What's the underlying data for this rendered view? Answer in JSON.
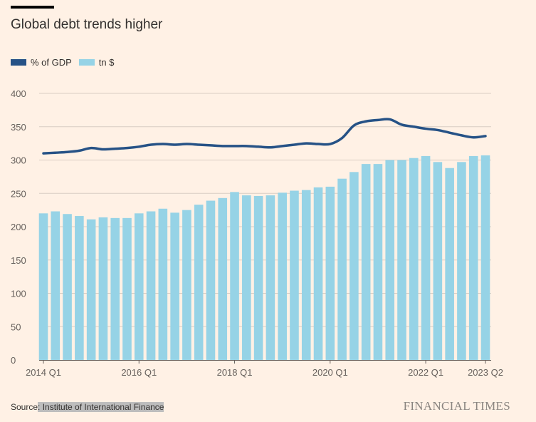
{
  "chart_data": {
    "type": "bar",
    "title": "Global debt trends higher",
    "xlabel": "",
    "ylabel": "",
    "ylim": [
      0,
      400
    ],
    "yticks": [
      0,
      50,
      100,
      150,
      200,
      250,
      300,
      350,
      400
    ],
    "grid": true,
    "legend_placement": "top-left",
    "categories": [
      "2014 Q1",
      "2014 Q2",
      "2014 Q3",
      "2014 Q4",
      "2015 Q1",
      "2015 Q2",
      "2015 Q3",
      "2015 Q4",
      "2016 Q1",
      "2016 Q2",
      "2016 Q3",
      "2016 Q4",
      "2017 Q1",
      "2017 Q2",
      "2017 Q3",
      "2017 Q4",
      "2018 Q1",
      "2018 Q2",
      "2018 Q3",
      "2018 Q4",
      "2019 Q1",
      "2019 Q2",
      "2019 Q3",
      "2019 Q4",
      "2020 Q1",
      "2020 Q2",
      "2020 Q3",
      "2020 Q4",
      "2021 Q1",
      "2021 Q2",
      "2021 Q3",
      "2021 Q4",
      "2022 Q1",
      "2022 Q2",
      "2022 Q3",
      "2022 Q4",
      "2023 Q1",
      "2023 Q2"
    ],
    "xtick_labels": [
      {
        "index": 0,
        "label": "2014 Q1"
      },
      {
        "index": 8,
        "label": "2016 Q1"
      },
      {
        "index": 16,
        "label": "2018 Q1"
      },
      {
        "index": 24,
        "label": "2020 Q1"
      },
      {
        "index": 32,
        "label": "2022 Q1"
      },
      {
        "index": 37,
        "label": "2023 Q2"
      }
    ],
    "series": [
      {
        "name": "% of GDP",
        "type": "line",
        "color": "#265286",
        "values": [
          310,
          311,
          312,
          314,
          318,
          316,
          317,
          318,
          320,
          323,
          324,
          323,
          324,
          323,
          322,
          321,
          321,
          321,
          320,
          319,
          321,
          323,
          325,
          324,
          324,
          333,
          352,
          358,
          360,
          361,
          353,
          350,
          347,
          345,
          341,
          337,
          334,
          336
        ]
      },
      {
        "name": "tn $",
        "type": "bar",
        "color": "#96d3e6",
        "values": [
          220,
          223,
          219,
          216,
          211,
          214,
          213,
          213,
          220,
          223,
          227,
          221,
          225,
          233,
          239,
          243,
          252,
          247,
          246,
          247,
          251,
          254,
          255,
          259,
          260,
          272,
          282,
          294,
          294,
          300,
          300,
          303,
          306,
          297,
          288,
          297,
          306,
          307
        ]
      }
    ]
  },
  "source": {
    "prefix": "Source",
    "name": ": Institute of International Finance"
  },
  "brand": "FINANCIAL TIMES"
}
